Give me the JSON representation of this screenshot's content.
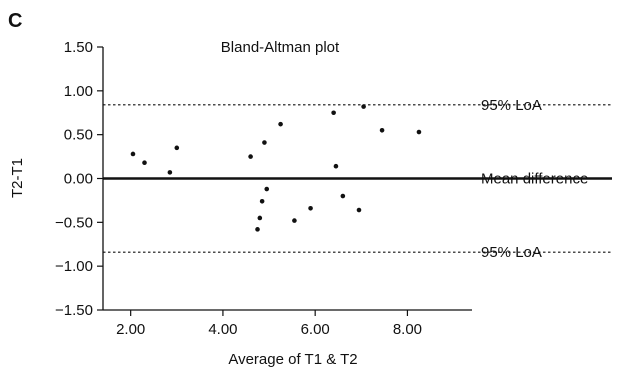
{
  "panel_label": "C",
  "chart_data": {
    "type": "scatter",
    "title": "Bland-Altman plot",
    "xlabel": "Average of T1 & T2",
    "ylabel": "T2-T1",
    "xlim": [
      1.4,
      9.4
    ],
    "ylim": [
      -1.5,
      1.5
    ],
    "x_ticks": [
      2,
      4,
      6,
      8
    ],
    "x_tick_labels": [
      "2.00",
      "4.00",
      "6.00",
      "8.00"
    ],
    "y_ticks": [
      1.5,
      1.0,
      0.5,
      0.0,
      -0.5,
      -1.0,
      -1.5
    ],
    "y_tick_labels": [
      "1.50",
      "1.00",
      "0.50",
      "0.00",
      "−0.50",
      "−1.00",
      "−1.50"
    ],
    "grid": false,
    "reference_lines": [
      {
        "label": "95% LoA",
        "y": 0.84,
        "style": "dotted"
      },
      {
        "label": "Mean difference",
        "y": 0.0,
        "style": "solid"
      },
      {
        "label": "95% LoA",
        "y": -0.84,
        "style": "dotted"
      }
    ],
    "points": [
      {
        "x": 2.05,
        "y": 0.28
      },
      {
        "x": 2.3,
        "y": 0.18
      },
      {
        "x": 2.85,
        "y": 0.07
      },
      {
        "x": 3.0,
        "y": 0.35
      },
      {
        "x": 4.6,
        "y": 0.25
      },
      {
        "x": 4.75,
        "y": -0.58
      },
      {
        "x": 4.8,
        "y": -0.45
      },
      {
        "x": 4.85,
        "y": -0.26
      },
      {
        "x": 4.9,
        "y": 0.41
      },
      {
        "x": 4.95,
        "y": -0.12
      },
      {
        "x": 5.25,
        "y": 0.62
      },
      {
        "x": 5.55,
        "y": -0.48
      },
      {
        "x": 5.9,
        "y": -0.34
      },
      {
        "x": 6.4,
        "y": 0.75
      },
      {
        "x": 6.45,
        "y": 0.14
      },
      {
        "x": 6.6,
        "y": -0.2
      },
      {
        "x": 6.95,
        "y": -0.36
      },
      {
        "x": 7.05,
        "y": 0.82
      },
      {
        "x": 7.45,
        "y": 0.55
      },
      {
        "x": 8.25,
        "y": 0.53
      }
    ],
    "colors": {
      "points": "#111111",
      "lines": "#111111"
    }
  }
}
